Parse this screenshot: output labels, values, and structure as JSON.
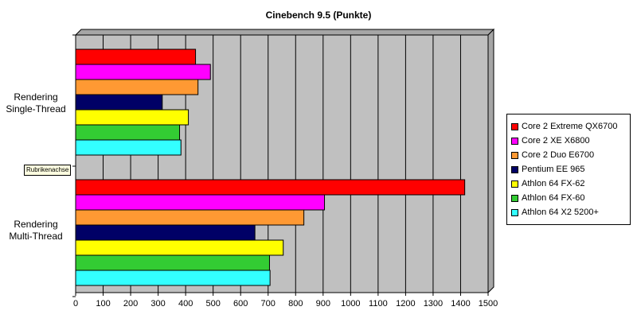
{
  "chart_data": {
    "type": "bar",
    "orientation": "horizontal",
    "title": "Cinebench 9.5 (Punkte)",
    "categories": [
      "Rendering Single-Thread",
      "Rendering Multi-Thread"
    ],
    "category_label_lines": [
      [
        "Rendering",
        "Single-Thread"
      ],
      [
        "Rendering",
        "Multi-Thread"
      ]
    ],
    "series": [
      {
        "name": "Core 2 Extreme QX6700",
        "color": "#ff0000",
        "values": [
          436,
          1415
        ]
      },
      {
        "name": "Core 2 XE X6800",
        "color": "#ff00ff",
        "values": [
          490,
          905
        ]
      },
      {
        "name": "Core 2 Duo E6700",
        "color": "#ff9933",
        "values": [
          445,
          830
        ]
      },
      {
        "name": "Pentium EE 965",
        "color": "#000066",
        "values": [
          315,
          652
        ]
      },
      {
        "name": "Athlon 64 FX-62",
        "color": "#ffff00",
        "values": [
          410,
          755
        ]
      },
      {
        "name": "Athlon 64 FX-60",
        "color": "#33cc33",
        "values": [
          378,
          705
        ]
      },
      {
        "name": "Athlon 64 X2 5200+",
        "color": "#33ffff",
        "values": [
          383,
          707
        ]
      }
    ],
    "xlim": [
      0,
      1500
    ],
    "xticks": [
      0,
      100,
      200,
      300,
      400,
      500,
      600,
      700,
      800,
      900,
      1000,
      1100,
      1200,
      1300,
      1400,
      1500
    ],
    "grid": true,
    "legend_position": "right",
    "plot_background": "#c0c0c0",
    "tooltip_text": "Rubrikenachse"
  }
}
